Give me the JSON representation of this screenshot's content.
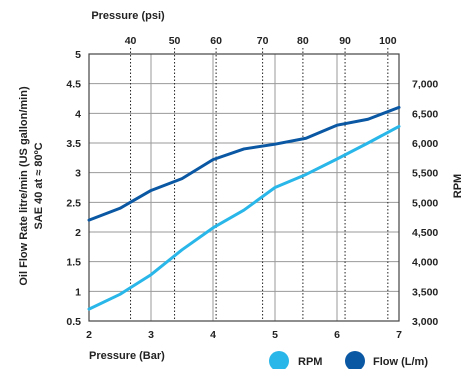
{
  "chart_data": {
    "type": "line",
    "top_axis": {
      "label": "Pressure (psi)",
      "ticks": [
        40,
        50,
        60,
        70,
        80,
        90,
        100
      ],
      "tick_positions_bar": [
        2.67,
        3.38,
        4.05,
        4.8,
        5.45,
        6.13,
        6.82
      ]
    },
    "x_axis": {
      "label": "Pressure (Bar)",
      "range": [
        2,
        7
      ],
      "ticks": [
        2,
        3,
        4,
        5,
        6,
        7
      ]
    },
    "y_left": {
      "label_line1": "Oil Flow Rate litre/min (US gallon/min)",
      "label_line2": "SAE 40 at ≈ 80ºC",
      "range": [
        0.5,
        5
      ],
      "ticks": [
        0.5,
        1,
        1.5,
        2,
        2.5,
        3,
        3.5,
        4,
        4.5,
        5
      ]
    },
    "y_right": {
      "label": "RPM",
      "range": [
        3000,
        7500
      ],
      "ticks": [
        3000,
        3500,
        4000,
        4500,
        5000,
        5500,
        6000,
        6500,
        7000
      ],
      "tick_labels": [
        "3,000",
        "3,500",
        "4,000",
        "4,500",
        "5,000",
        "5,500",
        "6,000",
        "6,500",
        "7,000"
      ]
    },
    "grid": true,
    "series": [
      {
        "name": "RPM",
        "axis": "left",
        "color": "#29b6e8",
        "x": [
          2.0,
          2.5,
          3.0,
          3.5,
          4.0,
          4.5,
          5.0,
          5.5,
          6.0,
          6.5,
          7.0
        ],
        "y": [
          0.7,
          0.95,
          1.28,
          1.7,
          2.07,
          2.37,
          2.75,
          2.97,
          3.23,
          3.5,
          3.78
        ]
      },
      {
        "name": "Flow (L/m)",
        "axis": "left",
        "color": "#0a57a3",
        "x": [
          2.0,
          2.5,
          3.0,
          3.5,
          4.0,
          4.5,
          5.0,
          5.5,
          6.0,
          6.5,
          7.0
        ],
        "y": [
          2.2,
          2.4,
          2.7,
          2.9,
          3.22,
          3.4,
          3.48,
          3.58,
          3.8,
          3.9,
          4.1
        ]
      }
    ],
    "legend_position": "bottom-right"
  }
}
